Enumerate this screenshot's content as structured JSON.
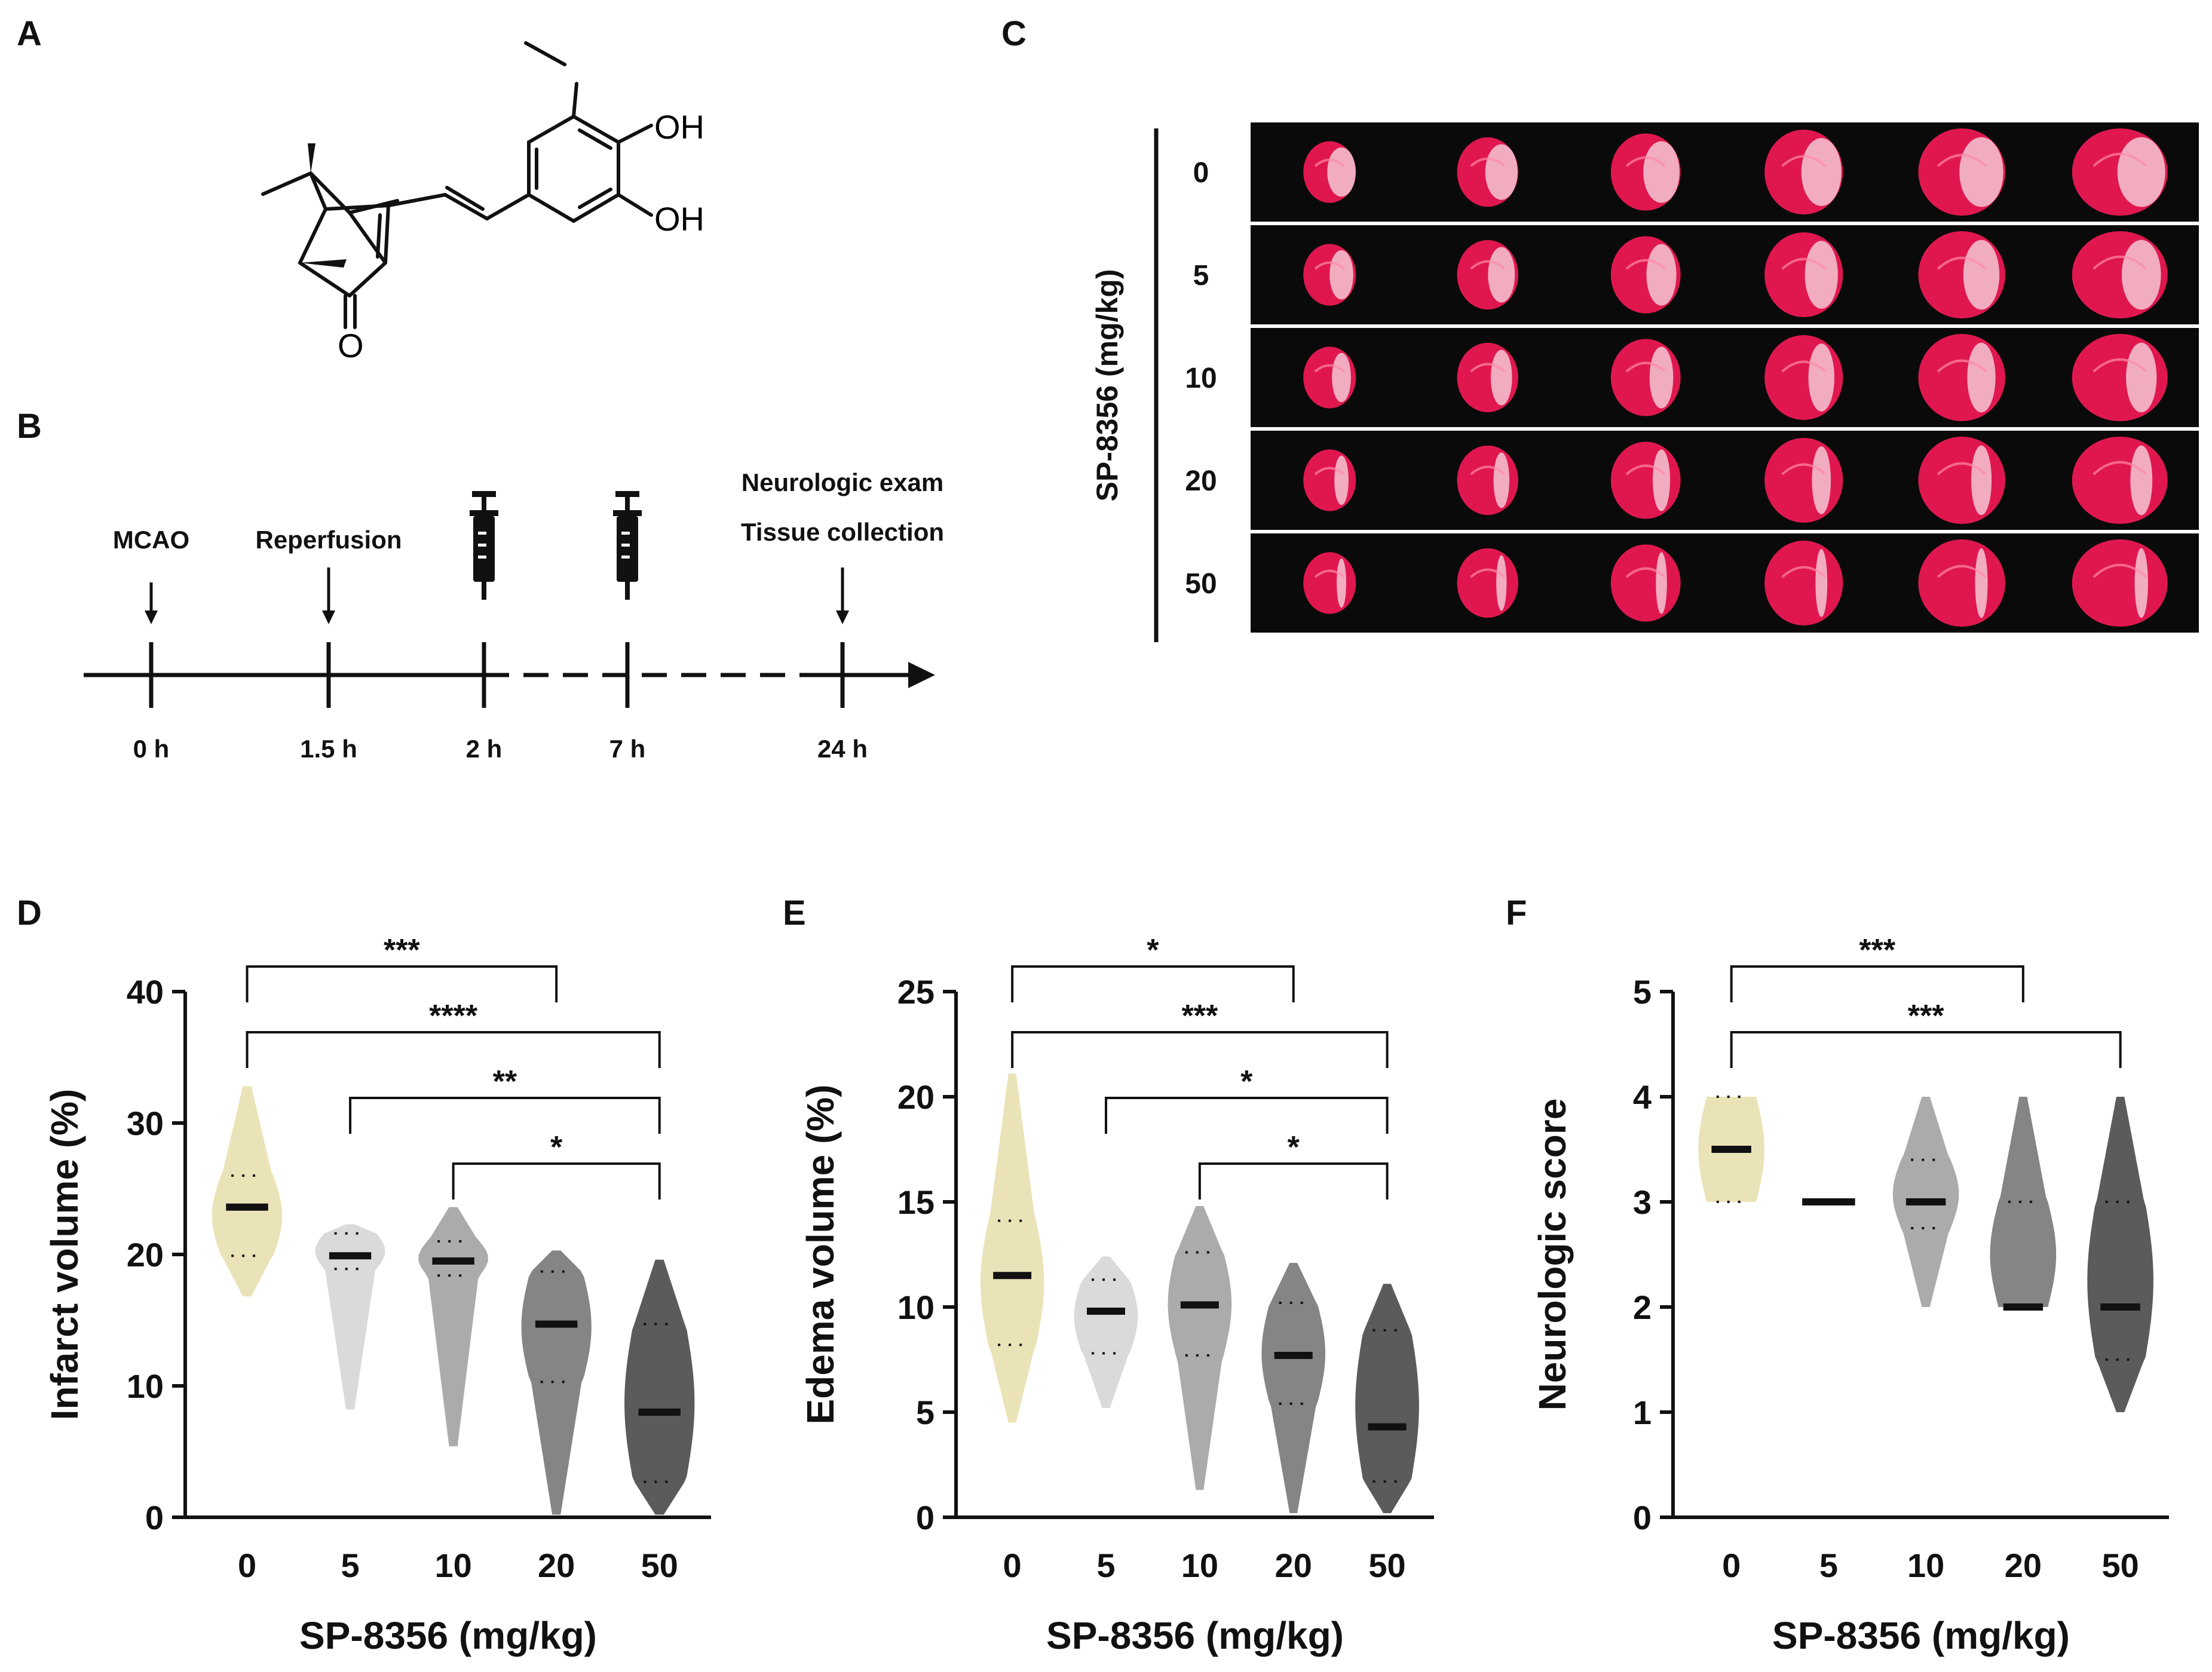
{
  "panels": {
    "A": "A",
    "B": "B",
    "C": "C",
    "D": "D",
    "E": "E",
    "F": "F"
  },
  "structure": {
    "labels": [
      "OH",
      "OH",
      "O"
    ]
  },
  "timeline": {
    "events": [
      {
        "label": "MCAO",
        "time": "0 h"
      },
      {
        "label": "Reperfusion",
        "time": "1.5 h"
      },
      {
        "label": "",
        "time": "2 h",
        "icon": "syringe-icon"
      },
      {
        "label": "",
        "time": "7 h",
        "icon": "syringe-icon"
      },
      {
        "label": "Neurologic exam",
        "label2": "Tissue collection",
        "time": "24 h"
      }
    ]
  },
  "brain_sections": {
    "ylabel": "SP-8356 (mg/kg)",
    "rows": [
      "0",
      "5",
      "10",
      "20",
      "50"
    ],
    "columns": 6,
    "colors": {
      "background": "#0a0a0a",
      "tissue": "#e0174f",
      "infarct": "#f3c7d4"
    }
  },
  "chart_data": [
    {
      "type": "violin",
      "panel": "D",
      "xlabel": "SP-8356 (mg/kg)",
      "ylabel": "Infarct volume (%)",
      "ylim": [
        0,
        40
      ],
      "yticks": [
        "0",
        "10",
        "20",
        "30",
        "40"
      ],
      "categories": [
        "0",
        "5",
        "10",
        "20",
        "50"
      ],
      "colors": [
        "#ebe3b8",
        "#dadada",
        "#ababab",
        "#858585",
        "#5b5b5b"
      ],
      "median": [
        23.6,
        19.9,
        19.5,
        14.7,
        8.0
      ],
      "quartiles": [
        [
          19.9,
          26.0
        ],
        [
          18.9,
          21.6
        ],
        [
          18.4,
          21.0
        ],
        [
          10.3,
          18.7
        ],
        [
          2.7,
          14.7
        ]
      ],
      "min": [
        16.8,
        8.2,
        5.4,
        0.2,
        0.2
      ],
      "max": [
        32.8,
        22.3,
        23.6,
        20.3,
        19.6
      ],
      "significance": [
        {
          "from": "0",
          "to": "20",
          "label": "***"
        },
        {
          "from": "0",
          "to": "50",
          "label": "****"
        },
        {
          "from": "5",
          "to": "50",
          "label": "**"
        },
        {
          "from": "10",
          "to": "50",
          "label": "*"
        }
      ]
    },
    {
      "type": "violin",
      "panel": "E",
      "xlabel": "SP-8356 (mg/kg)",
      "ylabel": "Edema volume (%)",
      "ylim": [
        0,
        25
      ],
      "yticks": [
        "0",
        "5",
        "10",
        "15",
        "20",
        "25"
      ],
      "categories": [
        "0",
        "5",
        "10",
        "20",
        "50"
      ],
      "colors": [
        "#ebe3b8",
        "#dadada",
        "#ababab",
        "#858585",
        "#5b5b5b"
      ],
      "median": [
        11.5,
        9.8,
        10.1,
        7.7,
        4.3
      ],
      "quartiles": [
        [
          8.2,
          14.1
        ],
        [
          7.8,
          11.3
        ],
        [
          7.7,
          12.6
        ],
        [
          5.4,
          10.2
        ],
        [
          1.7,
          8.9
        ]
      ],
      "min": [
        4.5,
        5.2,
        1.3,
        0.2,
        0.2
      ],
      "max": [
        21.1,
        12.4,
        14.8,
        12.1,
        11.1
      ],
      "significance": [
        {
          "from": "0",
          "to": "20",
          "label": "*"
        },
        {
          "from": "0",
          "to": "50",
          "label": "***"
        },
        {
          "from": "5",
          "to": "50",
          "label": "*"
        },
        {
          "from": "10",
          "to": "50",
          "label": "*"
        }
      ]
    },
    {
      "type": "violin",
      "panel": "F",
      "xlabel": "SP-8356 (mg/kg)",
      "ylabel": "Neurologic score",
      "ylim": [
        0,
        5
      ],
      "yticks": [
        "0",
        "1",
        "2",
        "3",
        "4",
        "5"
      ],
      "categories": [
        "0",
        "5",
        "10",
        "20",
        "50"
      ],
      "colors": [
        "#ebe3b8",
        "#dadada",
        "#ababab",
        "#858585",
        "#5b5b5b"
      ],
      "median": [
        3.5,
        3.0,
        3.0,
        2.0,
        2.0
      ],
      "quartiles": [
        [
          3.0,
          4.0
        ],
        [
          3.0,
          3.0
        ],
        [
          2.75,
          3.4
        ],
        [
          2.0,
          3.0
        ],
        [
          1.5,
          3.0
        ]
      ],
      "min": [
        3.0,
        3.0,
        2.0,
        2.0,
        1.0
      ],
      "max": [
        4.0,
        3.0,
        4.0,
        4.0,
        4.0
      ],
      "significance": [
        {
          "from": "0",
          "to": "20",
          "label": "***"
        },
        {
          "from": "0",
          "to": "50",
          "label": "***"
        }
      ]
    }
  ]
}
